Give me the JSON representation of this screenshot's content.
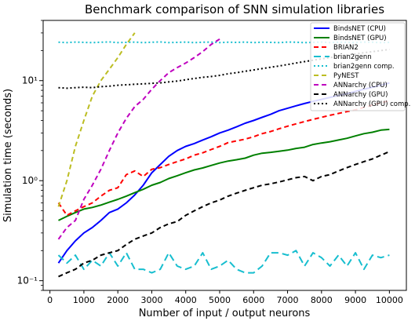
{
  "chart_data": {
    "type": "line",
    "title": "Benchmark comparison of SNN simulation libraries",
    "xlabel": "Number of input / output neurons",
    "ylabel": "Simulation time (seconds)",
    "xlim": [
      -200,
      10500
    ],
    "ylim": [
      0.08,
      40
    ],
    "yscale": "log",
    "xticks": [
      0,
      1000,
      2000,
      3000,
      4000,
      5000,
      6000,
      7000,
      8000,
      9000,
      10000
    ],
    "xtick_labels": [
      "0",
      "1000",
      "2000",
      "3000",
      "4000",
      "5000",
      "6000",
      "7000",
      "8000",
      "9000",
      "10000"
    ],
    "yticks": [
      0.1,
      1,
      10
    ],
    "ytick_labels": [
      "10⁻¹",
      "10⁰",
      "10¹"
    ],
    "grid": false,
    "legend_position": "top-right",
    "series": [
      {
        "name": "BindsNET (CPU)",
        "color": "#0000ff",
        "dash": "solid",
        "x": [
          250,
          500,
          750,
          1000,
          1250,
          1500,
          1750,
          2000,
          2250,
          2500,
          2750,
          3000,
          3250,
          3500,
          3750,
          4000,
          4250,
          4500,
          4750,
          5000,
          5250,
          5500,
          5750,
          6000,
          6250,
          6500,
          6750,
          7000,
          7250,
          7500,
          7750,
          8000,
          8250,
          8500,
          8750,
          9000,
          9250,
          9500,
          9750,
          10000
        ],
        "y": [
          0.15,
          0.2,
          0.25,
          0.3,
          0.34,
          0.4,
          0.48,
          0.52,
          0.6,
          0.72,
          0.9,
          1.2,
          1.45,
          1.75,
          2.0,
          2.2,
          2.35,
          2.55,
          2.75,
          3.0,
          3.2,
          3.45,
          3.75,
          4.0,
          4.3,
          4.6,
          5.0,
          5.3,
          5.6,
          5.9,
          6.2,
          6.5,
          6.8,
          7.1,
          7.4,
          7.8,
          8.2,
          8.6,
          9.0,
          9.5
        ]
      },
      {
        "name": "BindsNET (GPU)",
        "color": "#008000",
        "dash": "solid",
        "x": [
          250,
          500,
          750,
          1000,
          1250,
          1500,
          1750,
          2000,
          2250,
          2500,
          2750,
          3000,
          3250,
          3500,
          3750,
          4000,
          4250,
          4500,
          4750,
          5000,
          5250,
          5500,
          5750,
          6000,
          6250,
          6500,
          6750,
          7000,
          7250,
          7500,
          7750,
          8000,
          8250,
          8500,
          8750,
          9000,
          9250,
          9500,
          9750,
          10000
        ],
        "y": [
          0.4,
          0.44,
          0.48,
          0.52,
          0.54,
          0.57,
          0.61,
          0.65,
          0.7,
          0.76,
          0.82,
          0.9,
          0.96,
          1.05,
          1.12,
          1.2,
          1.28,
          1.34,
          1.42,
          1.5,
          1.57,
          1.62,
          1.68,
          1.8,
          1.88,
          1.92,
          1.97,
          2.02,
          2.1,
          2.16,
          2.3,
          2.38,
          2.45,
          2.55,
          2.65,
          2.8,
          2.95,
          3.05,
          3.2,
          3.25
        ]
      },
      {
        "name": "BRIAN2",
        "color": "#ff0000",
        "dash": "6,4",
        "x": [
          250,
          500,
          750,
          1000,
          1250,
          1500,
          1750,
          2000,
          2250,
          2500,
          2750,
          3000,
          3250,
          3500,
          3750,
          4000,
          4250,
          4500,
          4750,
          5000,
          5250,
          5500,
          5750,
          6000,
          6250,
          6500,
          6750,
          7000,
          7250,
          7500,
          7750,
          8000,
          8250,
          8500,
          8750,
          9000,
          9250,
          9500,
          9750,
          10000
        ],
        "y": [
          0.6,
          0.45,
          0.5,
          0.55,
          0.6,
          0.7,
          0.8,
          0.85,
          1.15,
          1.25,
          1.1,
          1.3,
          1.35,
          1.45,
          1.55,
          1.65,
          1.8,
          1.9,
          2.05,
          2.2,
          2.4,
          2.5,
          2.6,
          2.75,
          2.95,
          3.1,
          3.3,
          3.5,
          3.7,
          3.9,
          4.1,
          4.3,
          4.5,
          4.7,
          4.9,
          5.1,
          5.4,
          5.7,
          6.0,
          6.3
        ]
      },
      {
        "name": "brian2genn",
        "color": "#17becf",
        "dash": "9,5",
        "x": [
          250,
          500,
          750,
          1000,
          1250,
          1500,
          1750,
          2000,
          2250,
          2500,
          2750,
          3000,
          3250,
          3500,
          3750,
          4000,
          4250,
          4500,
          4750,
          5000,
          5250,
          5500,
          5750,
          6000,
          6250,
          6500,
          6750,
          7000,
          7250,
          7500,
          7750,
          8000,
          8250,
          8500,
          8750,
          9000,
          9250,
          9500,
          9750,
          10000
        ],
        "y": [
          0.18,
          0.15,
          0.18,
          0.13,
          0.16,
          0.14,
          0.19,
          0.14,
          0.19,
          0.13,
          0.13,
          0.12,
          0.13,
          0.19,
          0.14,
          0.13,
          0.14,
          0.19,
          0.13,
          0.14,
          0.16,
          0.13,
          0.12,
          0.12,
          0.14,
          0.19,
          0.19,
          0.18,
          0.2,
          0.14,
          0.19,
          0.17,
          0.14,
          0.18,
          0.14,
          0.19,
          0.13,
          0.18,
          0.17,
          0.18
        ]
      },
      {
        "name": "brian2genn comp.",
        "color": "#17becf",
        "dash": "2,3",
        "x": [
          250,
          500,
          750,
          1000,
          1250,
          1500,
          1750,
          2000,
          2250,
          2500,
          2750,
          3000,
          3250,
          3500,
          3750,
          4000,
          4250,
          4500,
          4750,
          5000,
          5250,
          5500,
          5750,
          6000,
          6250,
          6500,
          6750,
          7000,
          7250,
          7500,
          7750,
          8000,
          8250,
          8500,
          8750,
          9000,
          9250,
          9500,
          9750,
          10000
        ],
        "y": [
          24.2,
          24.0,
          24.3,
          24.1,
          24.0,
          24.2,
          24.4,
          24.0,
          24.1,
          24.3,
          24.0,
          24.2,
          24.4,
          24.0,
          24.1,
          24.3,
          24.0,
          24.2,
          24.3,
          24.0,
          24.2,
          24.1,
          24.3,
          24.0,
          24.2,
          24.1,
          24.0,
          24.3,
          24.2,
          24.0,
          24.1,
          24.3,
          24.0,
          24.2,
          24.1,
          24.0,
          24.3,
          24.2,
          24.0,
          24.1
        ]
      },
      {
        "name": "PyNEST",
        "color": "#bcbd22",
        "dash": "6,4",
        "x": [
          250,
          500,
          750,
          1000,
          1250,
          1500,
          1750,
          2000,
          2250,
          2500
        ],
        "y": [
          0.55,
          1.0,
          2.2,
          4.0,
          7.0,
          10.0,
          13.0,
          17.0,
          23.0,
          30.0
        ]
      },
      {
        "name": "ANNarchy (CPU)",
        "color": "#bf00bf",
        "dash": "6,4",
        "x": [
          250,
          500,
          750,
          1000,
          1250,
          1500,
          1750,
          2000,
          2250,
          2500,
          2750,
          3000,
          3250,
          3500,
          3750,
          4000,
          4250,
          4500,
          4750,
          5000
        ],
        "y": [
          0.26,
          0.34,
          0.4,
          0.65,
          0.9,
          1.3,
          2.0,
          3.0,
          4.2,
          5.5,
          6.5,
          8.2,
          10.0,
          12.0,
          13.5,
          15.0,
          17.0,
          19.5,
          23.0,
          26.0
        ]
      },
      {
        "name": "ANNarchy (GPU)",
        "color": "#000000",
        "dash": "6,4",
        "x": [
          250,
          500,
          750,
          1000,
          1250,
          1500,
          1750,
          2000,
          2250,
          2500,
          2750,
          3000,
          3250,
          3500,
          3750,
          4000,
          4250,
          4500,
          4750,
          5000,
          5250,
          5500,
          5750,
          6000,
          6250,
          6500,
          6750,
          7000,
          7250,
          7500,
          7750,
          8000,
          8250,
          8500,
          8750,
          9000,
          9250,
          9500,
          9750,
          10000
        ],
        "y": [
          0.11,
          0.12,
          0.13,
          0.15,
          0.16,
          0.18,
          0.19,
          0.2,
          0.23,
          0.26,
          0.28,
          0.3,
          0.34,
          0.37,
          0.39,
          0.45,
          0.5,
          0.55,
          0.6,
          0.64,
          0.7,
          0.75,
          0.8,
          0.85,
          0.9,
          0.93,
          0.97,
          1.02,
          1.07,
          1.1,
          1.0,
          1.1,
          1.15,
          1.25,
          1.35,
          1.45,
          1.55,
          1.65,
          1.8,
          1.95
        ]
      },
      {
        "name": "ANNarchy (GPU) comp.",
        "color": "#000000",
        "dash": "2,3",
        "x": [
          250,
          500,
          750,
          1000,
          1250,
          1500,
          1750,
          2000,
          2250,
          2500,
          2750,
          3000,
          3250,
          3500,
          3750,
          4000,
          4250,
          4500,
          4750,
          5000,
          5250,
          5500,
          5750,
          6000,
          6250,
          6500,
          6750,
          7000,
          7250,
          7500,
          7750,
          8000,
          8250,
          8500,
          8750,
          9000,
          9250,
          9500,
          9750,
          10000
        ],
        "y": [
          8.5,
          8.4,
          8.5,
          8.6,
          8.5,
          8.7,
          8.8,
          9.0,
          9.1,
          9.2,
          9.3,
          9.4,
          9.5,
          9.7,
          9.9,
          10.2,
          10.5,
          10.8,
          11.0,
          11.3,
          11.7,
          12.0,
          12.4,
          12.8,
          13.2,
          13.6,
          14.0,
          14.5,
          15.0,
          15.5,
          16.0,
          16.5,
          17.0,
          17.5,
          18.0,
          18.5,
          19.0,
          19.5,
          20.0,
          20.5
        ]
      }
    ]
  }
}
